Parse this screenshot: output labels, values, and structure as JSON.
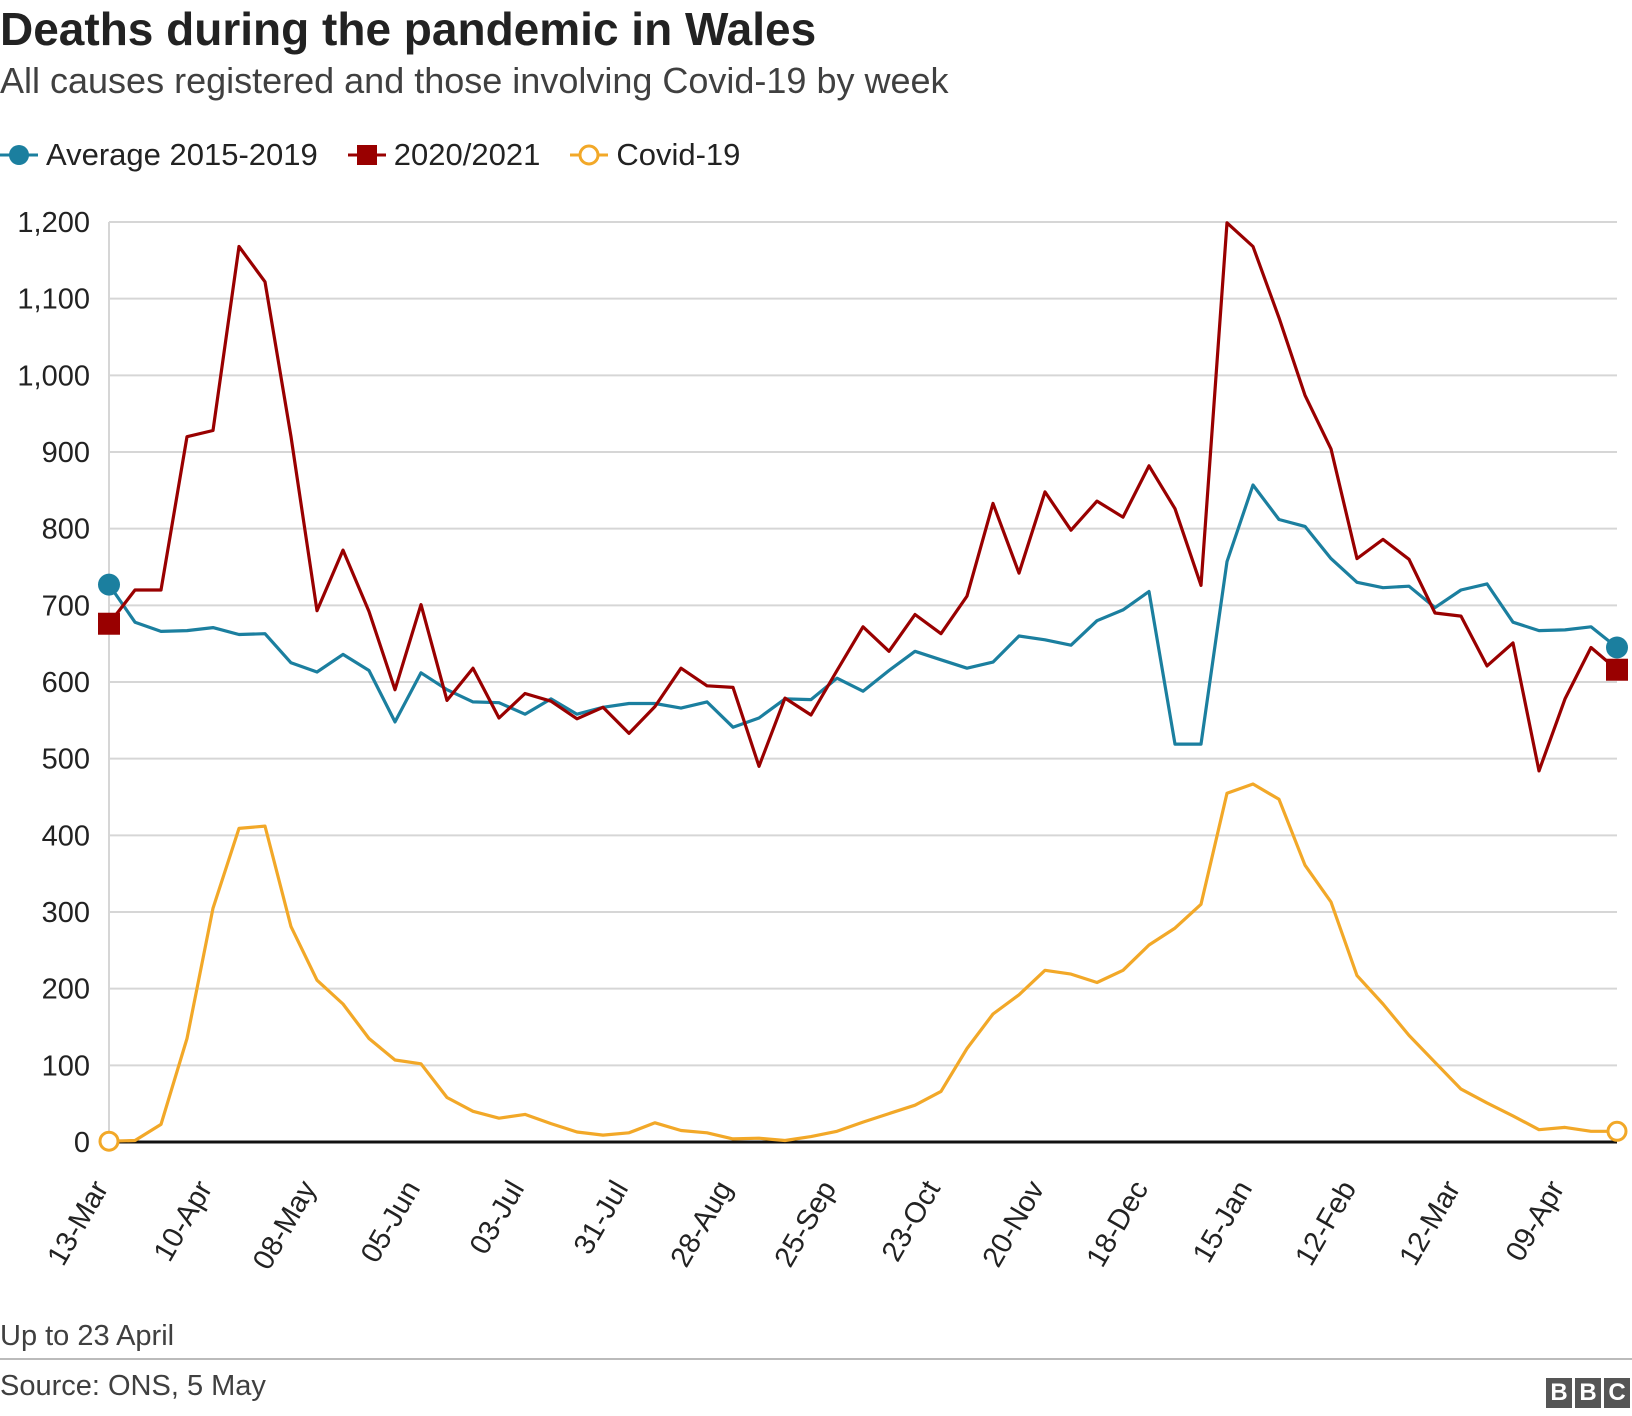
{
  "title": "Deaths during the pandemic in Wales",
  "subtitle": "All causes registered and those involving Covid-19 by week",
  "legend": [
    {
      "label": "Average 2015-2019",
      "color": "#1b7f9f",
      "marker": "circle-filled"
    },
    {
      "label": "2020/2021",
      "color": "#990000",
      "marker": "square-filled"
    },
    {
      "label": "Covid-19",
      "color": "#f2a828",
      "marker": "circle-hollow"
    }
  ],
  "footer": {
    "note": "Up to 23 April",
    "source": "Source: ONS, 5 May",
    "logo": [
      "B",
      "B",
      "C"
    ]
  },
  "chart_data": {
    "type": "line",
    "title": "Deaths during the pandemic in Wales",
    "subtitle": "All causes registered and those involving Covid-19 by week",
    "xlabel": "",
    "ylabel": "",
    "ylim": [
      0,
      1200
    ],
    "yticks": [
      0,
      100,
      200,
      300,
      400,
      500,
      600,
      700,
      800,
      900,
      1000,
      1100,
      1200
    ],
    "ytick_labels": [
      "0",
      "100",
      "200",
      "300",
      "400",
      "500",
      "600",
      "700",
      "800",
      "900",
      "1,000",
      "1,100",
      "1,200"
    ],
    "grid": true,
    "legend_position": "top-left",
    "xtick_labels": [
      {
        "index": 0,
        "label": "13-Mar"
      },
      {
        "index": 4,
        "label": "10-Apr"
      },
      {
        "index": 8,
        "label": "08-May"
      },
      {
        "index": 12,
        "label": "05-Jun"
      },
      {
        "index": 16,
        "label": "03-Jul"
      },
      {
        "index": 20,
        "label": "31-Jul"
      },
      {
        "index": 24,
        "label": "28-Aug"
      },
      {
        "index": 28,
        "label": "25-Sep"
      },
      {
        "index": 32,
        "label": "23-Oct"
      },
      {
        "index": 36,
        "label": "20-Nov"
      },
      {
        "index": 40,
        "label": "18-Dec"
      },
      {
        "index": 44,
        "label": "15-Jan"
      },
      {
        "index": 48,
        "label": "12-Feb"
      },
      {
        "index": 52,
        "label": "12-Mar"
      },
      {
        "index": 56,
        "label": "09-Apr"
      }
    ],
    "series": [
      {
        "name": "Average 2015-2019",
        "color": "#1b7f9f",
        "values": [
          727,
          678,
          666,
          667,
          671,
          662,
          663,
          625,
          613,
          636,
          615,
          548,
          612,
          590,
          574,
          573,
          558,
          578,
          558,
          567,
          572,
          572,
          566,
          574,
          541,
          553,
          578,
          577,
          605,
          588,
          615,
          640,
          629,
          618,
          626,
          660,
          655,
          648,
          680,
          694,
          718,
          519,
          519,
          757,
          857,
          812,
          803,
          761,
          730,
          723,
          725,
          697,
          720,
          728,
          678,
          667,
          668,
          672,
          645
        ]
      },
      {
        "name": "2020/2021",
        "color": "#990000",
        "values": [
          676,
          720,
          720,
          920,
          928,
          1168,
          1122,
          920,
          693,
          772,
          692,
          590,
          701,
          576,
          618,
          553,
          585,
          575,
          552,
          567,
          533,
          568,
          618,
          595,
          593,
          490,
          579,
          557,
          615,
          672,
          640,
          688,
          663,
          712,
          833,
          742,
          848,
          798,
          836,
          815,
          882,
          826,
          726,
          1199,
          1168,
          1075,
          974,
          904,
          761,
          786,
          760,
          690,
          686,
          621,
          651,
          484,
          578,
          645,
          616
        ]
      },
      {
        "name": "Covid-19",
        "color": "#f2a828",
        "values": [
          1,
          2,
          23,
          135,
          305,
          409,
          412,
          281,
          211,
          180,
          135,
          107,
          102,
          58,
          40,
          31,
          36,
          24,
          13,
          9,
          12,
          25,
          15,
          12,
          4,
          5,
          2,
          7,
          14,
          26,
          37,
          48,
          66,
          122,
          167,
          192,
          224,
          219,
          208,
          224,
          257,
          279,
          310,
          455,
          467,
          447,
          361,
          313,
          217,
          180,
          139,
          104,
          69,
          51,
          34,
          16,
          19,
          14,
          14
        ]
      }
    ]
  }
}
